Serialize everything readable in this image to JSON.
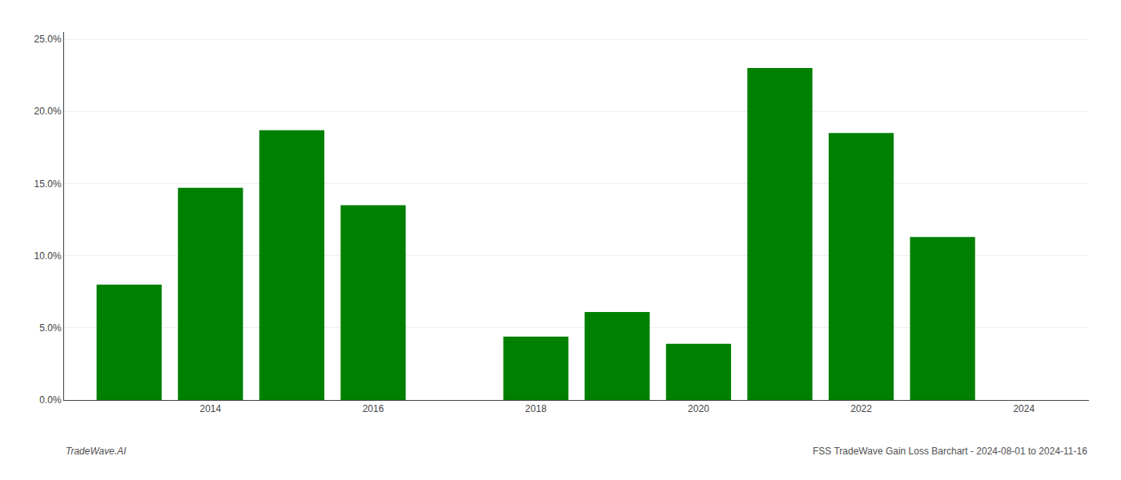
{
  "chart_data": {
    "type": "bar",
    "x": [
      2013,
      2014,
      2015,
      2016,
      2018,
      2019,
      2020,
      2021,
      2022,
      2023
    ],
    "values": [
      0.08,
      0.147,
      0.187,
      0.135,
      0.044,
      0.061,
      0.039,
      0.23,
      0.185,
      0.113
    ],
    "color": "#008000",
    "xlim": [
      2012.2,
      2024.8
    ],
    "xticks": [
      2014,
      2016,
      2018,
      2020,
      2022,
      2024
    ],
    "ylim": [
      0,
      0.255
    ],
    "yticks": [
      {
        "value": 0.0,
        "label": "0.0%"
      },
      {
        "value": 0.05,
        "label": "5.0%"
      },
      {
        "value": 0.1,
        "label": "10.0%"
      },
      {
        "value": 0.15,
        "label": "15.0%"
      },
      {
        "value": 0.2,
        "label": "20.0%"
      },
      {
        "value": 0.25,
        "label": "25.0%"
      }
    ],
    "grid": true,
    "annotations": [
      "TradeWave.AI",
      "FSS TradeWave Gain Loss Barchart - 2024-08-01 to 2024-11-16"
    ]
  }
}
